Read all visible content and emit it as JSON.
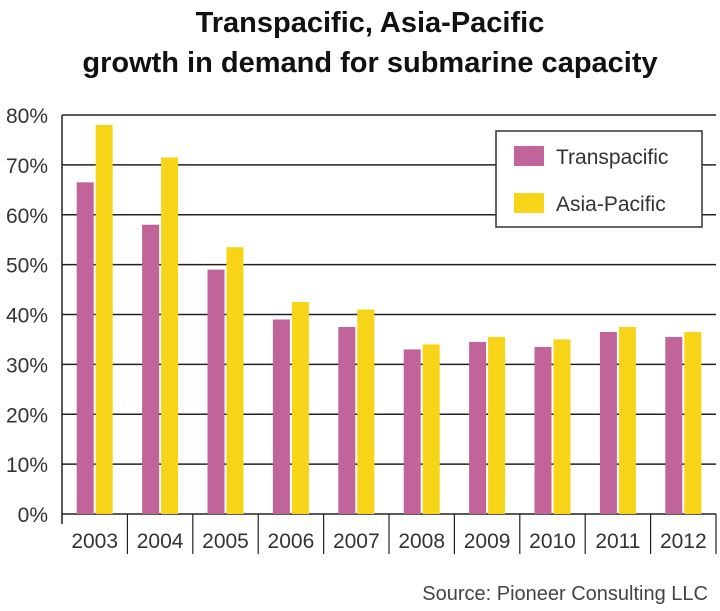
{
  "chart_data": {
    "type": "bar",
    "title": [
      "Transpacific, Asia-Pacific",
      "growth in demand for submarine capacity"
    ],
    "categories": [
      "2003",
      "2004",
      "2005",
      "2006",
      "2007",
      "2008",
      "2009",
      "2010",
      "2011",
      "2012"
    ],
    "series": [
      {
        "name": "Transpacific",
        "color": "#c0649a",
        "values": [
          66.5,
          58,
          49,
          39,
          37.5,
          33,
          34.5,
          33.5,
          36.5,
          35.5
        ]
      },
      {
        "name": "Asia-Pacific",
        "color": "#f7d417",
        "values": [
          78,
          71.5,
          53.5,
          42.5,
          41,
          34,
          35.5,
          35,
          37.5,
          36.5
        ]
      }
    ],
    "ylim": [
      0,
      80
    ],
    "yticks": [
      "0%",
      "10%",
      "20%",
      "30%",
      "40%",
      "50%",
      "60%",
      "70%",
      "80%"
    ],
    "ytick_values": [
      0,
      10,
      20,
      30,
      40,
      50,
      60,
      70,
      80
    ],
    "grid": true,
    "legend_position": "top-right",
    "source": "Source: Pioneer Consulting LLC"
  }
}
